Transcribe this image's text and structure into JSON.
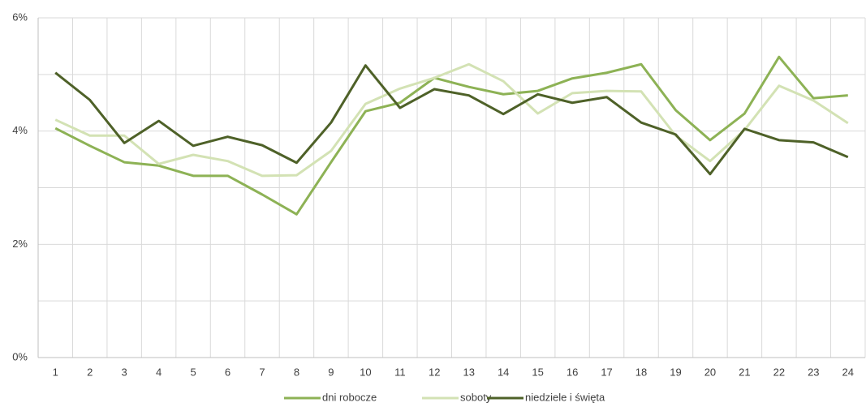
{
  "chart_data": {
    "type": "line",
    "categories": [
      "1",
      "2",
      "3",
      "4",
      "5",
      "6",
      "7",
      "8",
      "9",
      "10",
      "11",
      "12",
      "13",
      "14",
      "15",
      "16",
      "17",
      "18",
      "19",
      "20",
      "21",
      "22",
      "23",
      "24"
    ],
    "series": [
      {
        "name": "dni robocze",
        "color": "#8db255",
        "values": [
          4.05,
          3.74,
          3.45,
          3.39,
          3.21,
          3.21,
          2.88,
          2.53,
          3.45,
          4.35,
          4.5,
          4.94,
          4.78,
          4.65,
          4.71,
          4.93,
          5.03,
          5.18,
          4.37,
          3.84,
          4.31,
          5.31,
          4.58,
          4.63
        ]
      },
      {
        "name": "soboty",
        "color": "#d3e2b4",
        "values": [
          4.2,
          3.92,
          3.92,
          3.42,
          3.58,
          3.47,
          3.21,
          3.22,
          3.65,
          4.48,
          4.75,
          4.94,
          5.18,
          4.88,
          4.31,
          4.67,
          4.71,
          4.7,
          3.92,
          3.47,
          4.02,
          4.8,
          4.54,
          4.14
        ]
      },
      {
        "name": "niedziele i święta",
        "color": "#4e6128",
        "values": [
          5.03,
          4.55,
          3.79,
          4.18,
          3.74,
          3.9,
          3.75,
          3.44,
          4.15,
          5.16,
          4.41,
          4.74,
          4.63,
          4.3,
          4.65,
          4.5,
          4.6,
          4.15,
          3.94,
          3.24,
          4.04,
          3.84,
          3.8,
          3.54
        ]
      }
    ],
    "ylim": [
      0,
      6
    ],
    "yticks": [
      {
        "value": 0,
        "label": "0%"
      },
      {
        "value": 2,
        "label": "2%"
      },
      {
        "value": 4,
        "label": "4%"
      },
      {
        "value": 6,
        "label": "6%"
      }
    ],
    "grid": true,
    "legend": "bottom"
  }
}
